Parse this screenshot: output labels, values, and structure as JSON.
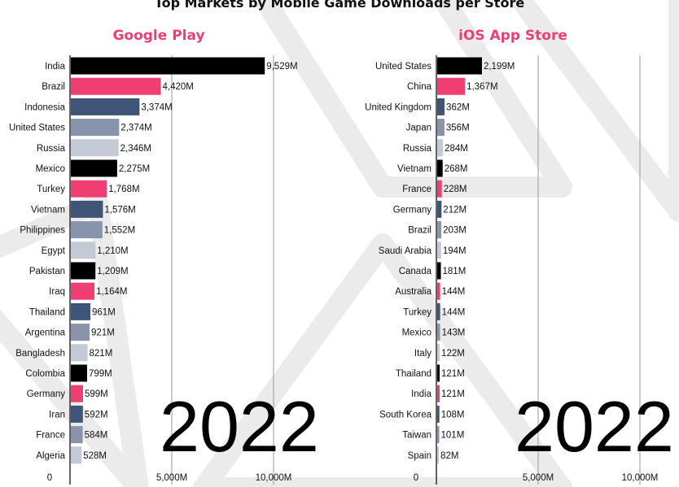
{
  "title": "Top Markets by Mobile Game Downloads per Store",
  "colors": {
    "accent": "#ef3f72",
    "palette": [
      "#000000",
      "#ef3f72",
      "#3f5577",
      "#8794ab",
      "#c4c9d6"
    ],
    "gridline": "#999999",
    "background_pattern": "#ebebeb"
  },
  "chart_data": [
    {
      "type": "bar",
      "orientation": "horizontal",
      "title": "Google Play",
      "year_label": "2022",
      "xlim": [
        0,
        12000
      ],
      "x_ticks": [
        0,
        5000,
        10000
      ],
      "x_tick_labels": [
        "0",
        "5,000M",
        "10,000M"
      ],
      "categories": [
        "India",
        "Brazil",
        "Indonesia",
        "United States",
        "Russia",
        "Mexico",
        "Turkey",
        "Vietnam",
        "Philippines",
        "Egypt",
        "Pakistan",
        "Iraq",
        "Thailand",
        "Argentina",
        "Bangladesh",
        "Colombia",
        "Germany",
        "Iran",
        "France",
        "Algeria"
      ],
      "values": [
        9529,
        4420,
        3374,
        2374,
        2346,
        2275,
        1768,
        1576,
        1552,
        1210,
        1209,
        1164,
        961,
        921,
        821,
        799,
        599,
        592,
        584,
        528
      ],
      "value_labels": [
        "9,529M",
        "4,420M",
        "3,374M",
        "2,374M",
        "2,346M",
        "2,275M",
        "1,768M",
        "1,576M",
        "1,552M",
        "1,210M",
        "1,209M",
        "1,164M",
        "961M",
        "921M",
        "821M",
        "799M",
        "599M",
        "592M",
        "584M",
        "528M"
      ]
    },
    {
      "type": "bar",
      "orientation": "horizontal",
      "title": "iOS App Store",
      "year_label": "2022",
      "xlim": [
        0,
        12000
      ],
      "x_ticks": [
        0,
        5000,
        10000
      ],
      "x_tick_labels": [
        "0",
        "5,000M",
        "10,000M"
      ],
      "categories": [
        "United States",
        "China",
        "United Kingdom",
        "Japan",
        "Russia",
        "Vietnam",
        "France",
        "Germany",
        "Brazil",
        "Saudi Arabia",
        "Canada",
        "Australia",
        "Turkey",
        "Mexico",
        "Italy",
        "Thailand",
        "India",
        "South Korea",
        "Taiwan",
        "Spain"
      ],
      "values": [
        2199,
        1367,
        362,
        356,
        284,
        268,
        228,
        212,
        203,
        194,
        181,
        144,
        144,
        143,
        122,
        121,
        121,
        108,
        101,
        82
      ],
      "value_labels": [
        "2,199M",
        "1,367M",
        "362M",
        "356M",
        "284M",
        "268M",
        "228M",
        "212M",
        "203M",
        "194M",
        "181M",
        "144M",
        "144M",
        "143M",
        "122M",
        "121M",
        "121M",
        "108M",
        "101M",
        "82M"
      ]
    }
  ]
}
